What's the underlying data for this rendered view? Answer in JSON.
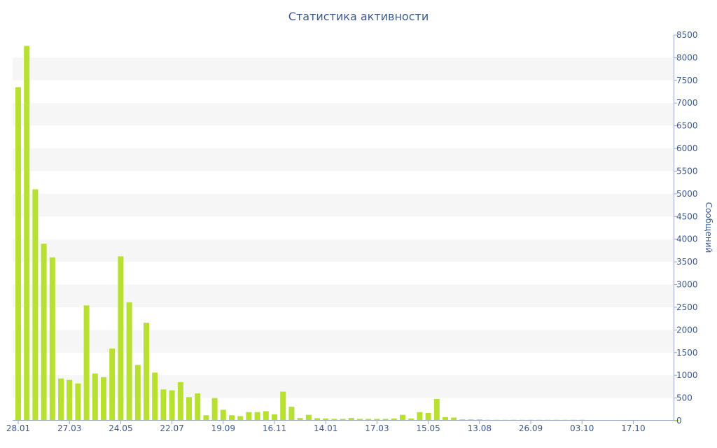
{
  "chart_data": {
    "type": "bar",
    "title": "Статистика активности",
    "xlabel": "",
    "ylabel": "Сообщений",
    "ylim": [
      0,
      8500
    ],
    "y_ticks": [
      0,
      500,
      1000,
      1500,
      2000,
      2500,
      3000,
      3500,
      4000,
      4500,
      5000,
      5500,
      6000,
      6500,
      7000,
      7500,
      8000,
      8500
    ],
    "y_axis_side": "right",
    "grid": "alternating horizontal bands",
    "bar_color": "#b8e030",
    "x_tick_labels": [
      {
        "label": "28.01",
        "bar_index": 0
      },
      {
        "label": "27.03",
        "bar_index": 6
      },
      {
        "label": "24.05",
        "bar_index": 12
      },
      {
        "label": "22.07",
        "bar_index": 18
      },
      {
        "label": "19.09",
        "bar_index": 24
      },
      {
        "label": "16.11",
        "bar_index": 30
      },
      {
        "label": "14.01",
        "bar_index": 36
      },
      {
        "label": "17.03",
        "bar_index": 42
      },
      {
        "label": "15.05",
        "bar_index": 48
      },
      {
        "label": "13.08",
        "bar_index": 54
      },
      {
        "label": "26.09",
        "bar_index": 60
      },
      {
        "label": "03.10",
        "bar_index": 66
      },
      {
        "label": "17.10",
        "bar_index": 72
      }
    ],
    "values": [
      7350,
      8260,
      5100,
      3900,
      3600,
      930,
      900,
      820,
      2540,
      1040,
      960,
      1590,
      3620,
      2610,
      1230,
      2160,
      1060,
      690,
      670,
      850,
      520,
      600,
      120,
      500,
      240,
      120,
      100,
      190,
      190,
      210,
      140,
      640,
      310,
      60,
      130,
      55,
      50,
      40,
      40,
      60,
      40,
      40,
      40,
      40,
      50,
      130,
      50,
      190,
      170,
      480,
      80,
      70,
      30,
      30,
      30,
      20,
      20,
      20,
      20,
      20,
      20,
      20,
      20,
      20,
      20,
      20,
      20,
      15,
      15,
      15,
      15,
      15,
      15,
      15,
      15,
      15,
      15,
      15
    ]
  }
}
